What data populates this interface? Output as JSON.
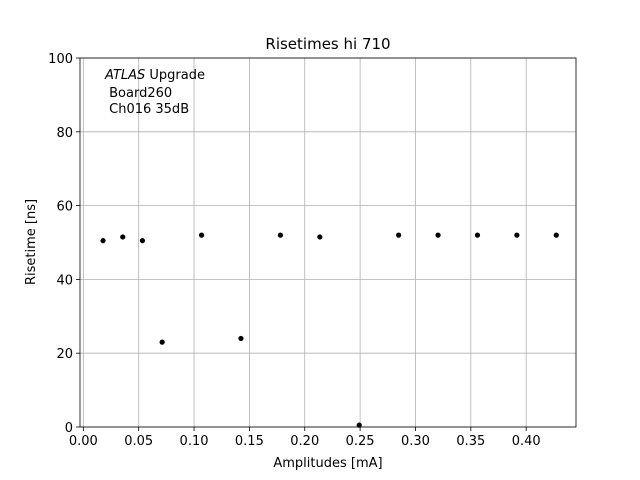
{
  "chart_data": {
    "type": "scatter",
    "title": "Risetimes hi 710",
    "xlabel": "Amplitudes [mA]",
    "ylabel": "Risetime [ns]",
    "xlim": [
      -0.003,
      0.445
    ],
    "ylim": [
      0,
      100
    ],
    "grid": true,
    "marker_color": "#000000",
    "x_ticks": [
      "0.00",
      "0.05",
      "0.10",
      "0.15",
      "0.20",
      "0.25",
      "0.30",
      "0.35",
      "0.40"
    ],
    "x_tick_values": [
      0.0,
      0.05,
      0.1,
      0.15,
      0.2,
      0.25,
      0.3,
      0.35,
      0.4
    ],
    "y_ticks": [
      "0",
      "20",
      "40",
      "60",
      "80",
      "100"
    ],
    "y_tick_values": [
      0,
      20,
      40,
      60,
      80,
      100
    ],
    "annotation": {
      "line1_italic": "ATLAS",
      "line1_rest": " Upgrade",
      "line2": " Board260",
      "line3": " Ch016 35dB"
    },
    "points": [
      {
        "x": 0.0178,
        "y": 50.5
      },
      {
        "x": 0.0356,
        "y": 51.5
      },
      {
        "x": 0.0534,
        "y": 50.5
      },
      {
        "x": 0.0712,
        "y": 23.0
      },
      {
        "x": 0.1068,
        "y": 52.0
      },
      {
        "x": 0.1424,
        "y": 24.0
      },
      {
        "x": 0.178,
        "y": 52.0
      },
      {
        "x": 0.2136,
        "y": 51.5
      },
      {
        "x": 0.2492,
        "y": 0.5
      },
      {
        "x": 0.2848,
        "y": 52.0
      },
      {
        "x": 0.3204,
        "y": 52.0
      },
      {
        "x": 0.356,
        "y": 52.0
      },
      {
        "x": 0.3916,
        "y": 52.0
      },
      {
        "x": 0.4272,
        "y": 52.0
      }
    ]
  }
}
